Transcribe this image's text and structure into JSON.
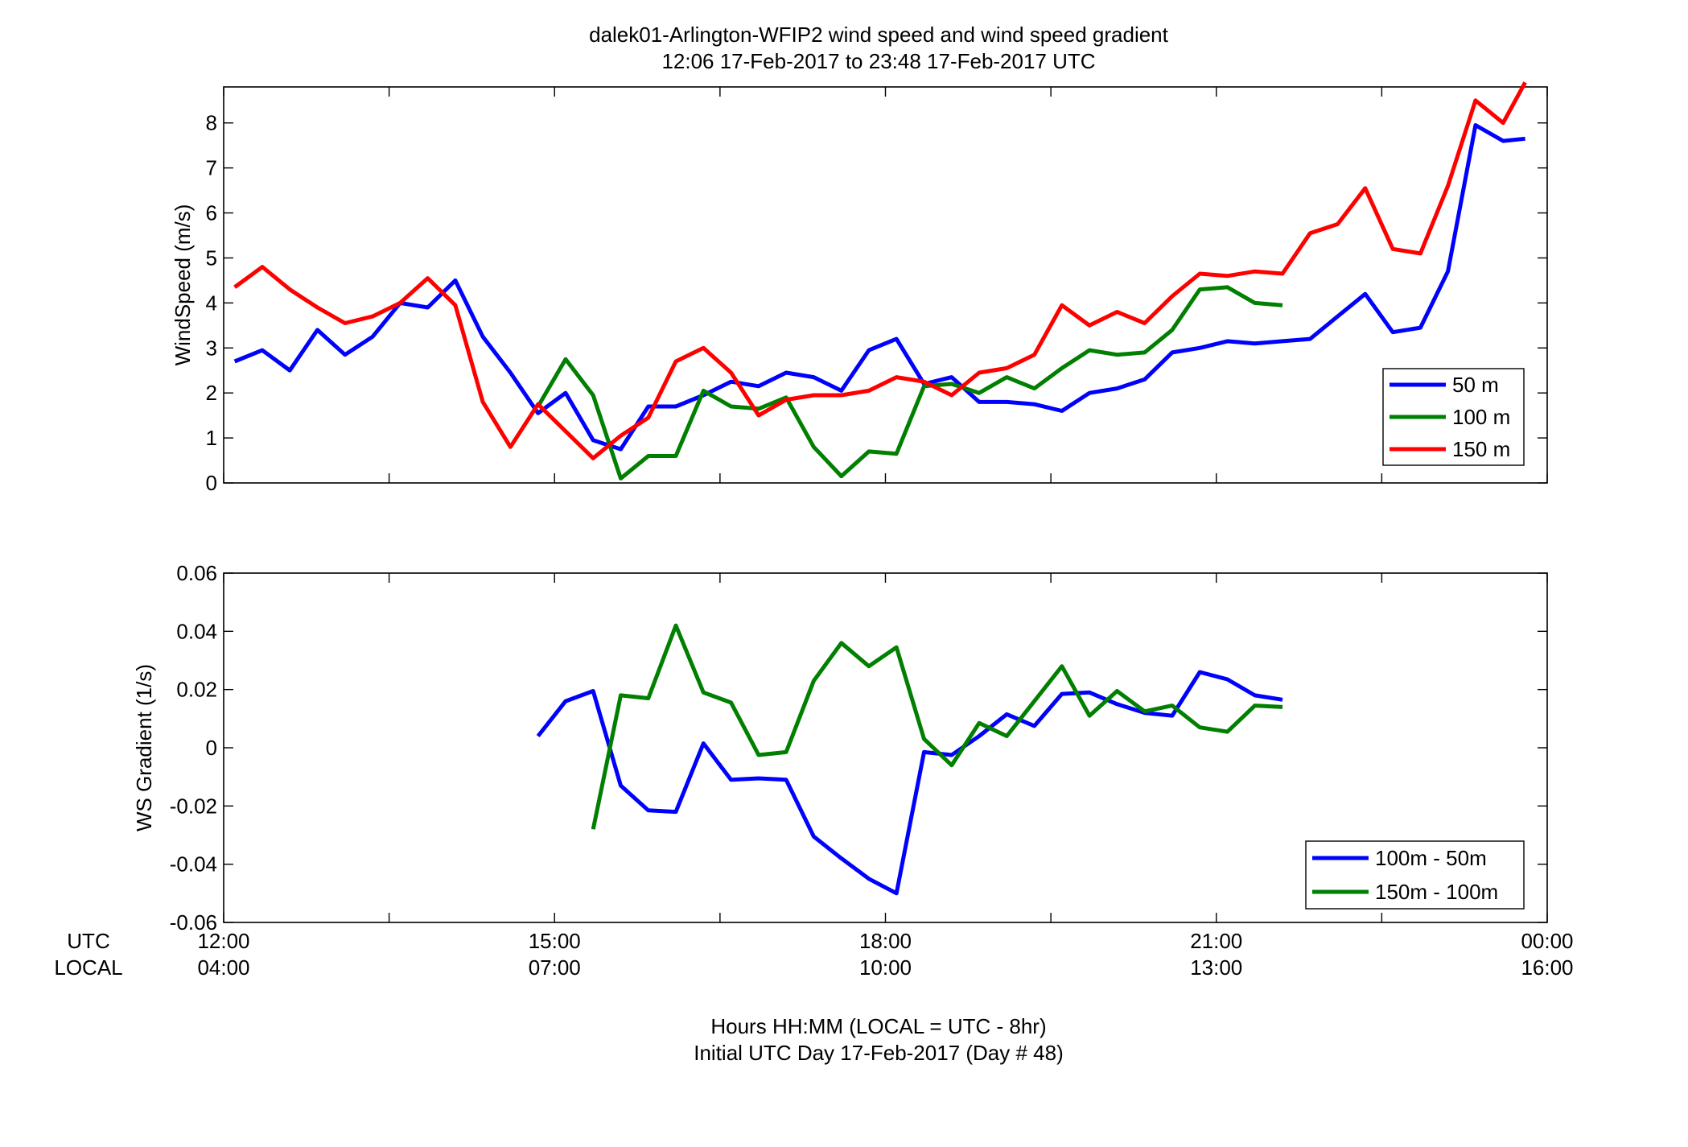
{
  "title_line1": "dalek01-Arlington-WFIP2  wind speed and wind speed gradient",
  "title_line2": "12:06 17-Feb-2017 to 23:48 17-Feb-2017  UTC",
  "xaxis": {
    "row1_label": "UTC",
    "row2_label": "LOCAL",
    "ticks_utc": [
      "12:00",
      "15:00",
      "18:00",
      "21:00",
      "00:00"
    ],
    "ticks_local": [
      "04:00",
      "07:00",
      "10:00",
      "13:00",
      "16:00"
    ],
    "label_line1": "Hours HH:MM  (LOCAL = UTC - 8hr)",
    "label_line2": "Initial UTC Day 17-Feb-2017 (Day # 48)"
  },
  "colors": {
    "blue": "#0000ff",
    "green": "#007f00",
    "red": "#ff0000",
    "axis": "#000000"
  },
  "chart_data": [
    {
      "type": "line",
      "title": "",
      "xlabel": "",
      "ylabel": "WindSpeed (m/s)",
      "xlim": [
        12,
        24
      ],
      "ylim": [
        0,
        8.8
      ],
      "yticks": [
        0,
        1,
        2,
        3,
        4,
        5,
        6,
        7,
        8
      ],
      "ytick_labels": [
        "0",
        "1",
        "2",
        "3",
        "4",
        "5",
        "6",
        "7",
        "8"
      ],
      "legend_position": "bottom-right",
      "series": [
        {
          "name": "50 m",
          "color": "#0000ff",
          "x": [
            12.1,
            12.35,
            12.6,
            12.85,
            13.1,
            13.35,
            13.6,
            13.85,
            14.1,
            14.35,
            14.6,
            14.85,
            15.1,
            15.35,
            15.6,
            15.85,
            16.1,
            16.35,
            16.6,
            16.85,
            17.1,
            17.35,
            17.6,
            17.85,
            18.1,
            18.35,
            18.6,
            18.85,
            19.1,
            19.35,
            19.6,
            19.85,
            20.1,
            20.35,
            20.6,
            20.85,
            21.1,
            21.35,
            21.6,
            21.85,
            22.1,
            22.35,
            22.6,
            22.85,
            23.1,
            23.35,
            23.6,
            23.8
          ],
          "y": [
            2.7,
            2.95,
            2.5,
            3.4,
            2.85,
            3.25,
            4.0,
            3.9,
            4.5,
            3.25,
            2.45,
            1.55,
            2.0,
            0.95,
            0.75,
            1.7,
            1.7,
            1.95,
            2.25,
            2.15,
            2.45,
            2.35,
            2.05,
            2.95,
            3.2,
            2.2,
            2.35,
            1.8,
            1.8,
            1.75,
            1.6,
            2.0,
            2.1,
            2.3,
            2.9,
            3.0,
            3.15,
            3.1,
            3.15,
            3.2,
            3.7,
            4.2,
            3.35,
            3.45,
            4.7,
            7.95,
            7.6,
            7.65
          ]
        },
        {
          "name": "100 m",
          "color": "#007f00",
          "x": [
            14.85,
            15.1,
            15.35,
            15.6,
            15.85,
            16.1,
            16.35,
            16.6,
            16.85,
            17.1,
            17.35,
            17.6,
            17.85,
            18.1,
            18.35,
            18.6,
            18.85,
            19.1,
            19.35,
            19.6,
            19.85,
            20.1,
            20.35,
            20.6,
            20.85,
            21.1,
            21.35,
            21.6
          ],
          "y": [
            1.7,
            2.75,
            1.95,
            0.1,
            0.6,
            0.6,
            2.05,
            1.7,
            1.65,
            1.9,
            0.8,
            0.15,
            0.7,
            0.65,
            2.15,
            2.2,
            2.0,
            2.35,
            2.1,
            2.55,
            2.95,
            2.85,
            2.9,
            3.4,
            4.3,
            4.35,
            4.0,
            3.95
          ]
        },
        {
          "name": "150 m",
          "color": "#ff0000",
          "x": [
            12.1,
            12.35,
            12.6,
            12.85,
            13.1,
            13.35,
            13.6,
            13.85,
            14.1,
            14.35,
            14.6,
            14.85,
            15.35,
            15.6,
            15.85,
            16.1,
            16.35,
            16.6,
            16.85,
            17.1,
            17.35,
            17.6,
            17.85,
            18.1,
            18.35,
            18.6,
            18.85,
            19.1,
            19.35,
            19.6,
            19.85,
            20.1,
            20.35,
            20.6,
            20.85,
            21.1,
            21.35,
            21.6,
            21.85,
            22.1,
            22.35,
            22.6,
            22.85,
            23.1,
            23.35,
            23.6,
            23.8
          ],
          "y": [
            4.35,
            4.8,
            4.3,
            3.9,
            3.55,
            3.7,
            4.0,
            4.55,
            3.95,
            1.8,
            0.8,
            1.75,
            0.55,
            1.05,
            1.45,
            2.7,
            3.0,
            2.45,
            1.5,
            1.85,
            1.95,
            1.95,
            2.05,
            2.35,
            2.25,
            1.95,
            2.45,
            2.55,
            2.85,
            3.95,
            3.5,
            3.8,
            3.55,
            4.15,
            4.65,
            4.6,
            4.7,
            4.65,
            5.55,
            5.75,
            6.55,
            5.2,
            5.1,
            6.6,
            8.5,
            8.0,
            8.9
          ]
        }
      ]
    },
    {
      "type": "line",
      "title": "",
      "xlabel": "",
      "ylabel": "WS Gradient (1/s)",
      "xlim": [
        12,
        24
      ],
      "ylim": [
        -0.06,
        0.06
      ],
      "yticks": [
        -0.06,
        -0.04,
        -0.02,
        0,
        0.02,
        0.04,
        0.06
      ],
      "ytick_labels": [
        "-0.06",
        "-0.04",
        "-0.02",
        "0",
        "0.02",
        "0.04",
        "0.06"
      ],
      "legend_position": "bottom-right",
      "series": [
        {
          "name": "100m - 50m",
          "color": "#0000ff",
          "x": [
            14.85,
            15.1,
            15.35,
            15.6,
            15.85,
            16.1,
            16.35,
            16.6,
            16.85,
            17.1,
            17.35,
            17.6,
            17.85,
            18.1,
            18.35,
            18.6,
            18.85,
            19.1,
            19.35,
            19.6,
            19.85,
            20.1,
            20.35,
            20.6,
            20.85,
            21.1,
            21.35,
            21.6
          ],
          "y": [
            0.004,
            0.016,
            0.0195,
            -0.013,
            -0.0215,
            -0.022,
            0.0015,
            -0.011,
            -0.0105,
            -0.011,
            -0.0305,
            -0.038,
            -0.045,
            -0.05,
            -0.0015,
            -0.0025,
            0.004,
            0.0115,
            0.0075,
            0.0185,
            0.019,
            0.015,
            0.012,
            0.011,
            0.026,
            0.0235,
            0.018,
            0.0165
          ]
        },
        {
          "name": "150m - 100m",
          "color": "#007f00",
          "x": [
            15.35,
            15.6,
            15.85,
            16.1,
            16.35,
            16.6,
            16.85,
            17.1,
            17.35,
            17.6,
            17.85,
            18.1,
            18.35,
            18.6,
            18.85,
            19.1,
            19.35,
            19.6,
            19.85,
            20.1,
            20.35,
            20.6,
            20.85,
            21.1,
            21.35,
            21.6
          ],
          "y": [
            -0.028,
            0.018,
            0.017,
            0.042,
            0.019,
            0.0155,
            -0.0025,
            -0.0015,
            0.023,
            0.036,
            0.028,
            0.0345,
            0.003,
            -0.006,
            0.0085,
            0.004,
            0.016,
            0.028,
            0.011,
            0.0195,
            0.0125,
            0.0145,
            0.007,
            0.0055,
            0.0145,
            0.014
          ]
        }
      ]
    }
  ]
}
